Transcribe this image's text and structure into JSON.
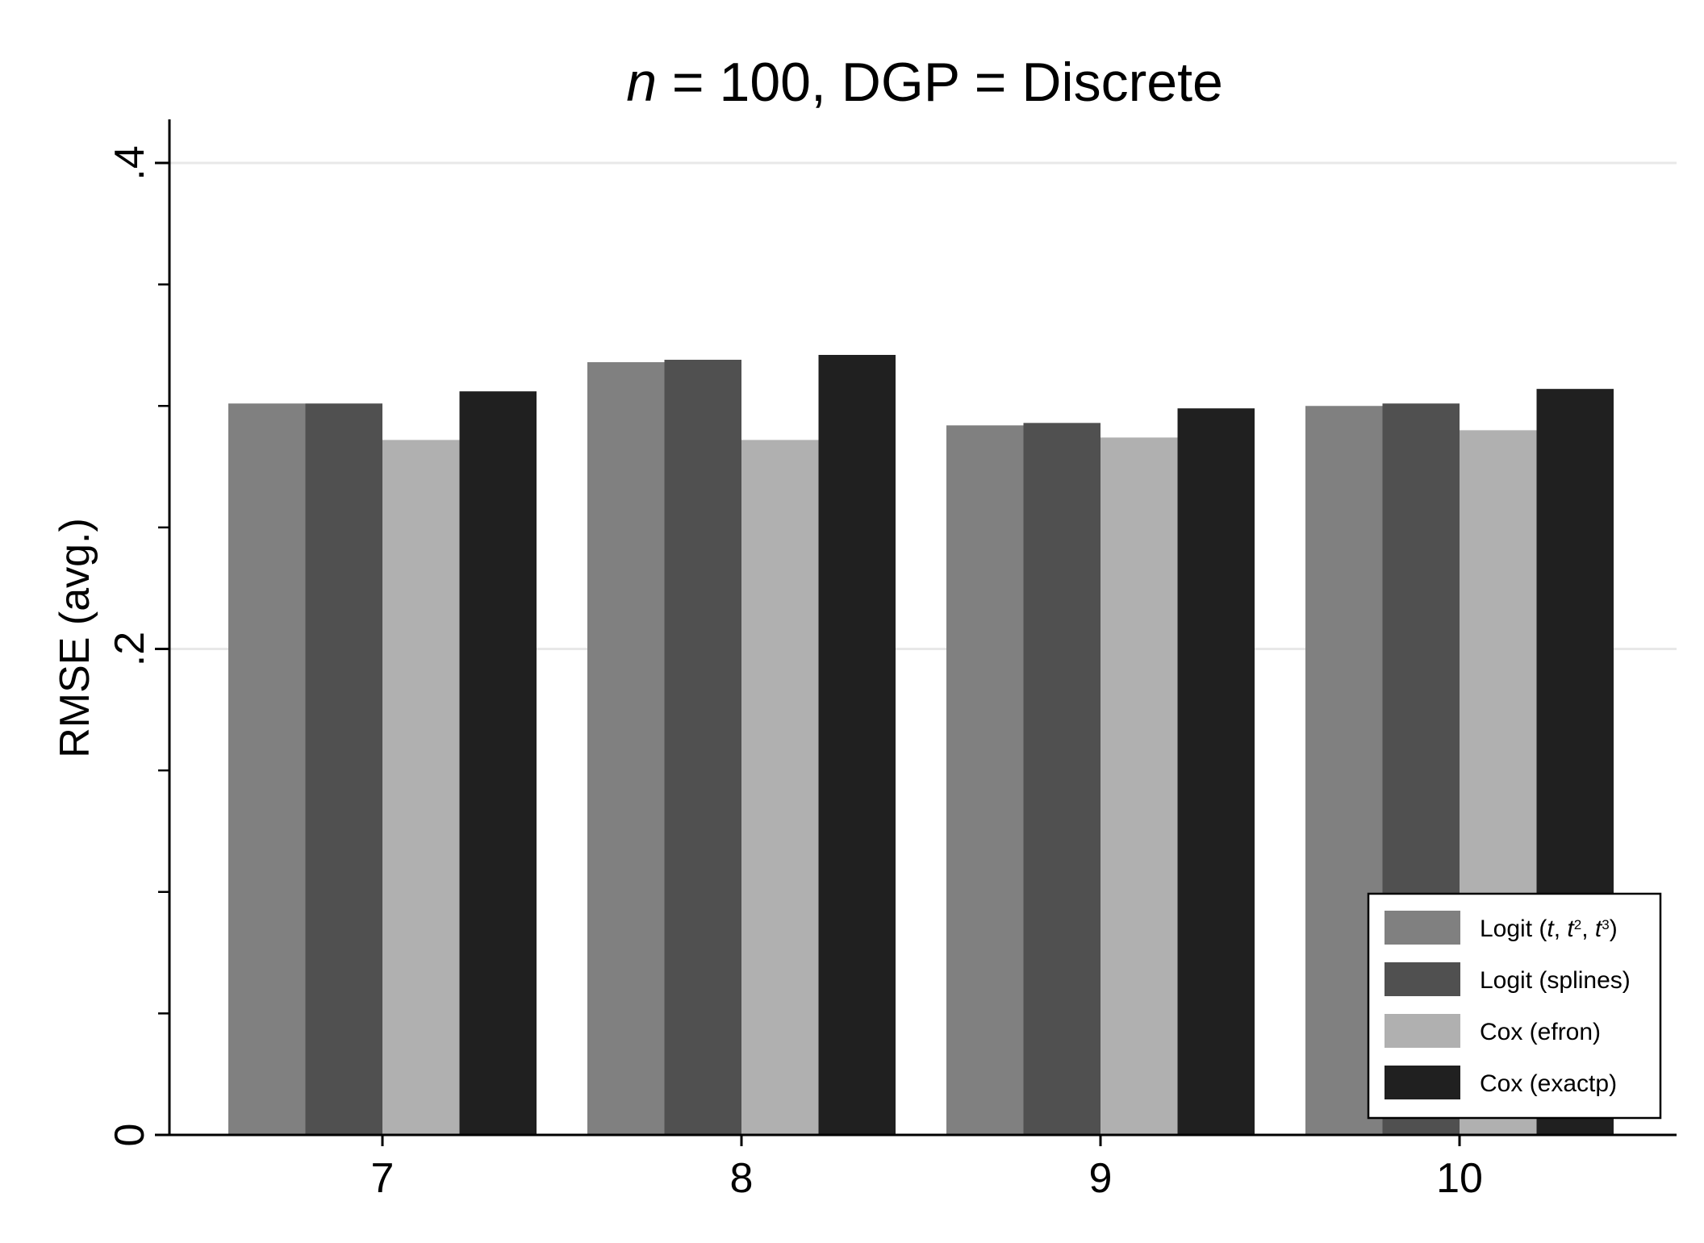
{
  "chart_data": {
    "type": "bar",
    "title": {
      "var": "n",
      "rest": " = 100, DGP = Discrete"
    },
    "xlabel": "",
    "ylabel": "RMSE (avg.)",
    "categories": [
      "7",
      "8",
      "9",
      "10"
    ],
    "ylim": [
      0,
      0.42
    ],
    "y_major_ticks": [
      0,
      0.2,
      0.4
    ],
    "y_tick_labels": [
      "0",
      ".2",
      ".4"
    ],
    "y_minor_ticks": [
      0.05,
      0.1,
      0.15,
      0.25,
      0.3,
      0.35
    ],
    "grid": true,
    "legend_position": "bottom-right",
    "series": [
      {
        "name": "Logit (t, t2, t3)",
        "color": "#808080",
        "values": [
          0.301,
          0.318,
          0.292,
          0.3
        ]
      },
      {
        "name": "Logit (splines)",
        "color": "#505050",
        "values": [
          0.301,
          0.319,
          0.293,
          0.301
        ]
      },
      {
        "name": "Cox (efron)",
        "color": "#b0b0b0",
        "values": [
          0.286,
          0.286,
          0.287,
          0.29
        ]
      },
      {
        "name": "Cox (exactp)",
        "color": "#202020",
        "values": [
          0.306,
          0.321,
          0.299,
          0.307
        ]
      }
    ]
  }
}
